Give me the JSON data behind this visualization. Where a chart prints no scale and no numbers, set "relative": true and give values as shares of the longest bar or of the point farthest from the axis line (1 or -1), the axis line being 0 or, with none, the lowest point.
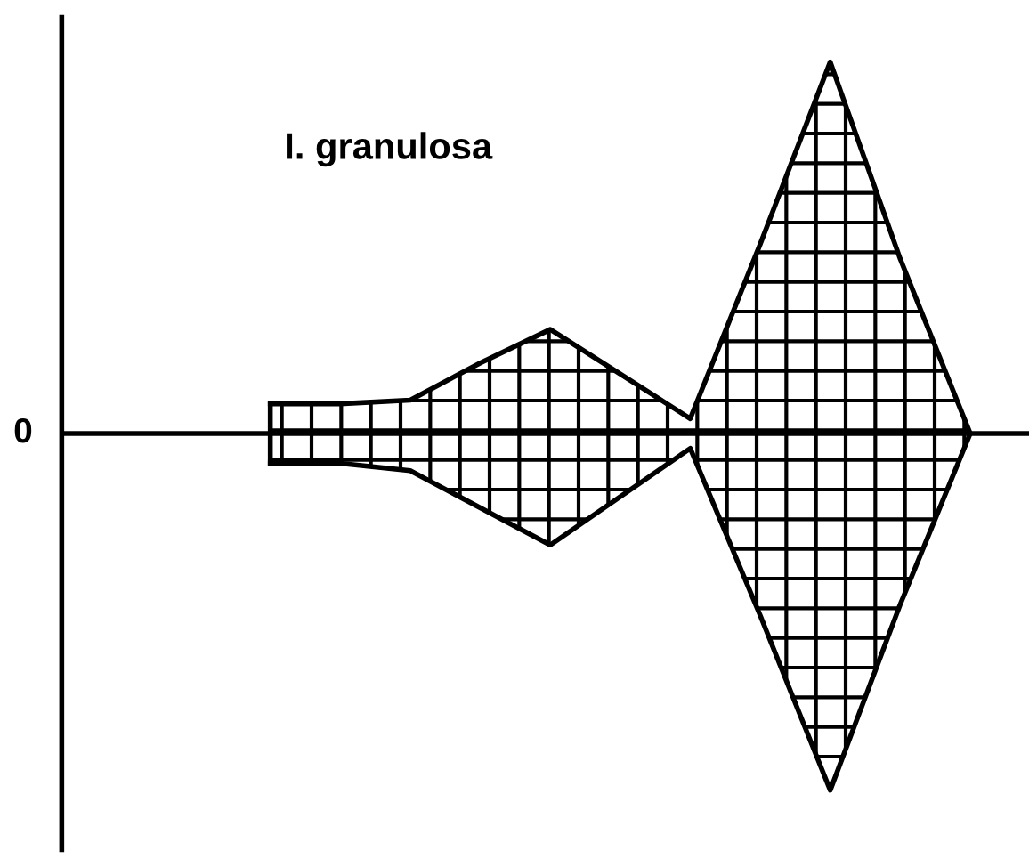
{
  "chart_data": {
    "type": "area",
    "title": "I. granulosa",
    "relative": true,
    "categories": [
      null,
      null,
      null,
      null,
      null,
      null,
      null,
      null,
      null,
      null,
      null
    ],
    "series": [
      {
        "color": "#000000",
        "values": [
          0.08,
          0.08,
          0.09,
          0.19,
          0.28,
          0.16,
          0.04,
          0.51,
          1.0,
          0.47,
          0
        ]
      },
      {
        "color": "#000000",
        "values": [
          -0.08,
          -0.08,
          -0.1,
          -0.2,
          -0.3,
          -0.17,
          -0.04,
          -0.49,
          -0.96,
          -0.46,
          0
        ]
      }
    ],
    "annotations": [
      "0"
    ],
    "grid": false,
    "legend": false
  }
}
